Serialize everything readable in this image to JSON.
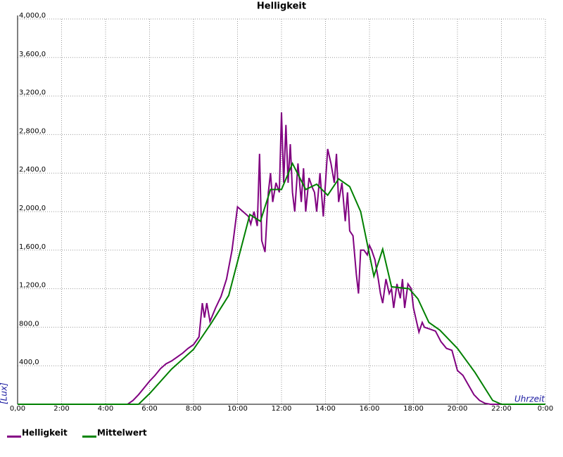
{
  "chart_data": {
    "type": "line",
    "title": "Helligkeit",
    "x_label": "Uhrzeit",
    "y_label": "[Lux]",
    "grid": true,
    "xlim": [
      0,
      24
    ],
    "ylim": [
      0,
      4000
    ],
    "xticks": [
      {
        "value": 0,
        "label": "0,00"
      },
      {
        "value": 2,
        "label": "2:00"
      },
      {
        "value": 4,
        "label": "4:00"
      },
      {
        "value": 6,
        "label": "6:00"
      },
      {
        "value": 8,
        "label": "8:00"
      },
      {
        "value": 10,
        "label": "10:00"
      },
      {
        "value": 12,
        "label": "12:00"
      },
      {
        "value": 14,
        "label": "14:00"
      },
      {
        "value": 16,
        "label": "16:00"
      },
      {
        "value": 18,
        "label": "18:00"
      },
      {
        "value": 20,
        "label": "20:00"
      },
      {
        "value": 22,
        "label": "22:00"
      },
      {
        "value": 24,
        "label": "0:00"
      }
    ],
    "yticks": [
      {
        "value": 400,
        "label": "400,0"
      },
      {
        "value": 800,
        "label": "800,0"
      },
      {
        "value": 1200,
        "label": "1,200,0"
      },
      {
        "value": 1600,
        "label": "1,600,0"
      },
      {
        "value": 2000,
        "label": "2,000,0"
      },
      {
        "value": 2400,
        "label": "2,400,0"
      },
      {
        "value": 2800,
        "label": "2,800,0"
      },
      {
        "value": 3200,
        "label": "3,200,0"
      },
      {
        "value": 3600,
        "label": "3,600,0"
      },
      {
        "value": 4000,
        "label": "4,000,0"
      }
    ],
    "series": [
      {
        "name": "Helligkeit",
        "color": "#800080",
        "x": [
          0,
          5,
          5.25,
          5.5,
          5.75,
          6,
          6.25,
          6.5,
          6.75,
          7,
          7.25,
          7.5,
          7.75,
          8,
          8.25,
          8.4,
          8.5,
          8.6,
          8.75,
          9,
          9.25,
          9.5,
          9.75,
          10,
          10.25,
          10.5,
          10.6,
          10.75,
          10.9,
          11,
          11.1,
          11.25,
          11.4,
          11.5,
          11.6,
          11.75,
          11.9,
          12,
          12.1,
          12.2,
          12.3,
          12.4,
          12.5,
          12.6,
          12.75,
          12.9,
          13,
          13.1,
          13.25,
          13.4,
          13.5,
          13.6,
          13.75,
          13.9,
          14,
          14.1,
          14.25,
          14.4,
          14.5,
          14.6,
          14.75,
          14.9,
          15,
          15.1,
          15.25,
          15.4,
          15.5,
          15.6,
          15.75,
          15.9,
          16,
          16.1,
          16.25,
          16.4,
          16.5,
          16.6,
          16.75,
          16.9,
          17,
          17.1,
          17.25,
          17.4,
          17.5,
          17.6,
          17.75,
          17.9,
          18,
          18.1,
          18.25,
          18.4,
          18.5,
          18.75,
          19,
          19.25,
          19.5,
          19.75,
          20,
          20.25,
          20.5,
          20.75,
          21,
          21.25,
          21.5,
          24
        ],
        "values": [
          0,
          0,
          40,
          100,
          170,
          240,
          300,
          370,
          420,
          450,
          490,
          530,
          580,
          620,
          700,
          1050,
          900,
          1050,
          860,
          1000,
          1120,
          1300,
          1600,
          2050,
          2000,
          1950,
          1870,
          2000,
          1850,
          2600,
          1700,
          1580,
          2200,
          2400,
          2100,
          2300,
          2200,
          3030,
          2300,
          2900,
          2300,
          2700,
          2200,
          2000,
          2500,
          2100,
          2450,
          2000,
          2350,
          2250,
          2200,
          2000,
          2400,
          1950,
          2300,
          2650,
          2500,
          2300,
          2600,
          2100,
          2300,
          1900,
          2200,
          1800,
          1750,
          1350,
          1150,
          1600,
          1600,
          1550,
          1650,
          1600,
          1500,
          1300,
          1150,
          1050,
          1300,
          1150,
          1200,
          1000,
          1250,
          1100,
          1300,
          1000,
          1250,
          1200,
          1000,
          900,
          750,
          850,
          800,
          780,
          760,
          650,
          580,
          560,
          350,
          300,
          200,
          100,
          40,
          10,
          0,
          0
        ]
      },
      {
        "name": "Mittelwert",
        "color": "#008000",
        "x": [
          0,
          5.5,
          6,
          7,
          8,
          8.8,
          9.6,
          10.56,
          11.04,
          11.5,
          12,
          12.5,
          13.1,
          13.6,
          14.1,
          14.6,
          15.1,
          15.6,
          16.2,
          16.6,
          17,
          17.8,
          18.2,
          18.7,
          19.2,
          20,
          20.8,
          21.6,
          22,
          24
        ],
        "values": [
          0,
          0,
          110,
          365,
          570,
          840,
          1130,
          1970,
          1900,
          2230,
          2230,
          2500,
          2230,
          2285,
          2170,
          2340,
          2260,
          2000,
          1330,
          1610,
          1220,
          1200,
          1095,
          850,
          770,
          580,
          330,
          40,
          0,
          0
        ]
      }
    ]
  }
}
